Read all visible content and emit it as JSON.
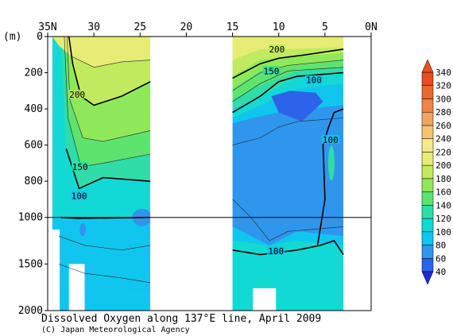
{
  "chart_data": {
    "type": "heatmap",
    "title": "Dissolved Oxygen along 137°E line, April 2009",
    "credit": "(C) Japan Meteorological Agency",
    "y_unit_label": "(m)",
    "x_axis": {
      "range": [
        35,
        0
      ],
      "ticks": [
        {
          "value": 35,
          "label": "35N"
        },
        {
          "value": 30,
          "label": "30"
        },
        {
          "value": 25,
          "label": "25"
        },
        {
          "value": 20,
          "label": "20"
        },
        {
          "value": 15,
          "label": "15"
        },
        {
          "value": 10,
          "label": "10"
        },
        {
          "value": 5,
          "label": "5"
        },
        {
          "value": 0,
          "label": "0N"
        }
      ]
    },
    "y_axis": {
      "range": [
        0,
        2000
      ],
      "breakpoints": [
        {
          "depth": 0,
          "frac": 0
        },
        {
          "depth": 1000,
          "frac": 0.66
        },
        {
          "depth": 2000,
          "frac": 1
        }
      ],
      "ticks": [
        {
          "value": 0,
          "label": "0"
        },
        {
          "value": 200,
          "label": "200"
        },
        {
          "value": 400,
          "label": "400"
        },
        {
          "value": 600,
          "label": "600"
        },
        {
          "value": 800,
          "label": "800"
        },
        {
          "value": 1000,
          "label": "1000"
        },
        {
          "value": 1500,
          "label": "1500"
        },
        {
          "value": 2000,
          "label": "2000"
        }
      ]
    },
    "color_scale": {
      "levels": [
        40,
        60,
        80,
        100,
        120,
        140,
        160,
        180,
        200,
        220,
        240,
        260,
        280,
        300,
        320,
        340
      ],
      "labels": [
        "40",
        "60",
        "80",
        "100",
        "120",
        "140",
        "160",
        "180",
        "200",
        "220",
        "240",
        "260",
        "280",
        "300",
        "320",
        "340"
      ],
      "colors": [
        "#1f2bd6",
        "#2d63e8",
        "#2f96ee",
        "#10c6ee",
        "#12d9d3",
        "#30dca8",
        "#5ee36f",
        "#8fe85a",
        "#c1ea5e",
        "#e6ec74",
        "#f6e88c",
        "#f4c470",
        "#f0a660",
        "#ed8646",
        "#e86a32",
        "#e5511e"
      ]
    },
    "contour_labels": [
      {
        "text": "200",
        "lat": 31.8,
        "depth": 320
      },
      {
        "text": "150",
        "lat": 31.5,
        "depth": 720
      },
      {
        "text": "100",
        "lat": 31.6,
        "depth": 880
      },
      {
        "text": "200",
        "lat": 10.2,
        "depth": 70
      },
      {
        "text": "150",
        "lat": 10.8,
        "depth": 190
      },
      {
        "text": "100",
        "lat": 6.2,
        "depth": 240
      },
      {
        "text": "100",
        "lat": 4.4,
        "depth": 570
      },
      {
        "text": "100",
        "lat": 10.3,
        "depth": 1360
      }
    ],
    "data_coverage": {
      "sections": [
        {
          "from": 34.5,
          "to": 23.9
        },
        {
          "from": 15.0,
          "to": 3.0
        }
      ],
      "gaps": [
        {
          "from": 23.9,
          "to": 15.0
        }
      ],
      "bottom_masks": [
        {
          "from": 34.5,
          "to": 33.7,
          "top": 1130
        },
        {
          "from": 32.7,
          "to": 31.0,
          "top": 1500
        },
        {
          "from": 12.8,
          "to": 10.3,
          "top": 1760
        }
      ]
    },
    "grid": false,
    "legend": "right"
  }
}
